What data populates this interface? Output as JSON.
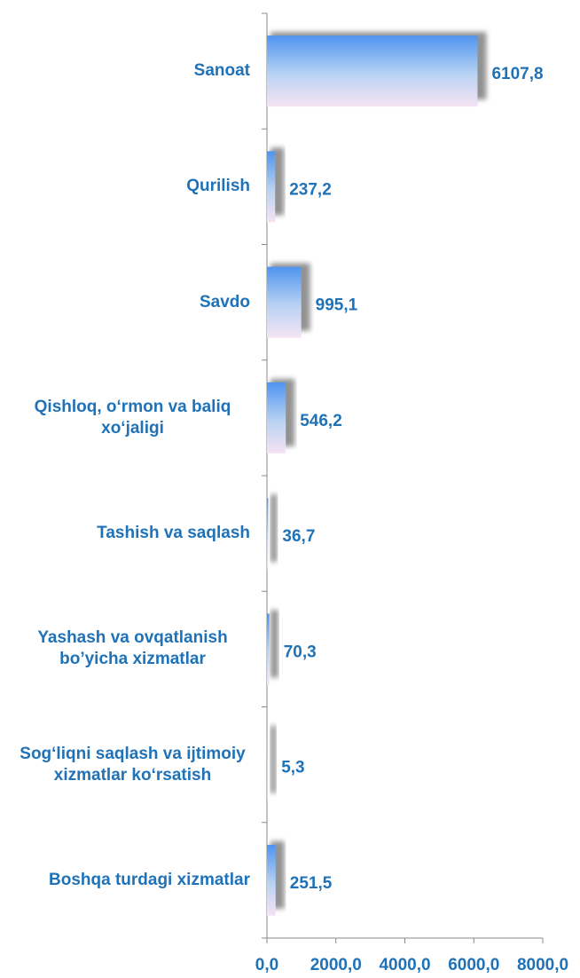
{
  "chart_data": {
    "type": "bar",
    "orientation": "horizontal",
    "categories": [
      "Sanoat",
      "Qurilish",
      "Savdo",
      "Qishloq, o‘rmon va baliq xo‘jaligi",
      "Tashish va saqlash",
      "Yashash va ovqatlanish bo’yicha xizmatlar",
      "Sog‘liqni saqlash va ijtimoiy xizmatlar ko‘rsatish",
      "Boshqa turdagi xizmatlar"
    ],
    "values": [
      6107.8,
      237.2,
      995.1,
      546.2,
      36.7,
      70.3,
      5.3,
      251.5
    ],
    "value_labels": [
      "6107,8",
      "237,2",
      "995,1",
      "546,2",
      "36,7",
      "70,3",
      "5,3",
      "251,5"
    ],
    "color": "#4f94f0",
    "xlim": [
      0,
      8000
    ],
    "xticks": [
      {
        "value": 0,
        "label": "0,0"
      },
      {
        "value": 2000,
        "label": "2000,0"
      },
      {
        "value": 4000,
        "label": "4000,0"
      },
      {
        "value": 6000,
        "label": "6000,0"
      },
      {
        "value": 8000,
        "label": "8000,0"
      }
    ]
  }
}
